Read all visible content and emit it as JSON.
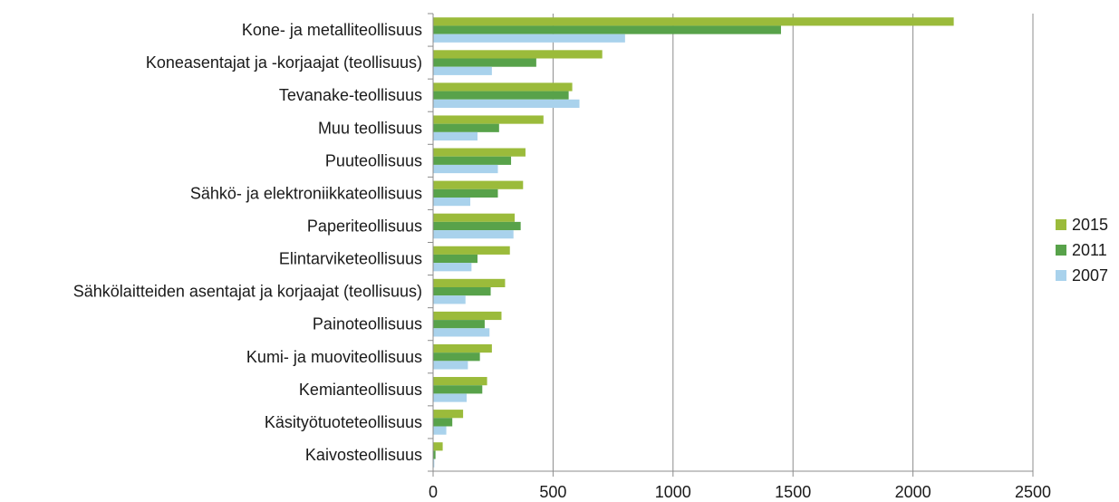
{
  "chart_data": {
    "type": "bar",
    "orientation": "horizontal",
    "title": "",
    "xlabel": "",
    "ylabel": "",
    "xlim": [
      0,
      2500
    ],
    "ticks": [
      "0",
      "500",
      "1000",
      "1500",
      "2000",
      "2500"
    ],
    "tick_values": [
      0,
      500,
      1000,
      1500,
      2000,
      2500
    ],
    "grid": true,
    "legend_position": "right",
    "categories": [
      "Kone- ja metalliteollisuus",
      "Koneasentajat ja -korjaajat (teollisuus)",
      "Tevanake-teollisuus",
      "Muu teollisuus",
      "Puuteollisuus",
      "Sähkö- ja elektroniikkateollisuus",
      "Paperiteollisuus",
      "Elintarviketeollisuus",
      "Sähkölaitteiden asentajat ja korjaajat (teollisuus)",
      "Painoteollisuus",
      "Kumi- ja muoviteollisuus",
      "Kemianteollisuus",
      "Käsityötuoteteollisuus",
      "Kaivosteollisuus"
    ],
    "series": [
      {
        "name": "2015",
        "color": "#9bbb3b",
        "values": [
          2170,
          705,
          580,
          460,
          385,
          375,
          340,
          320,
          300,
          285,
          245,
          225,
          125,
          40
        ]
      },
      {
        "name": "2011",
        "color": "#58a24a",
        "values": [
          1450,
          430,
          565,
          275,
          325,
          270,
          365,
          185,
          240,
          215,
          195,
          205,
          80,
          10
        ]
      },
      {
        "name": "2007",
        "color": "#a9d2ec",
        "values": [
          800,
          245,
          610,
          185,
          270,
          155,
          335,
          160,
          135,
          235,
          145,
          140,
          55,
          5
        ]
      }
    ]
  }
}
